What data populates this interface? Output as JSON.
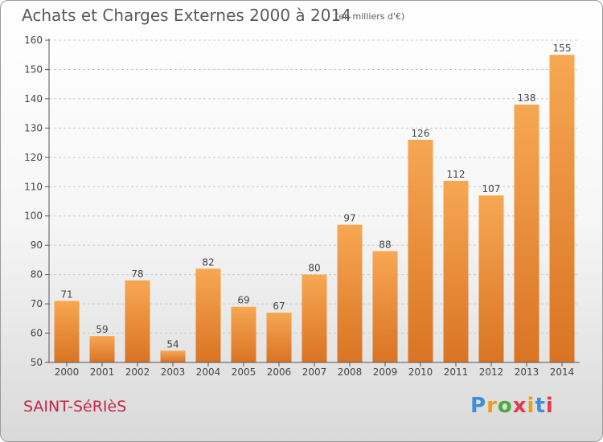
{
  "header": {
    "title": "Achats et Charges Externes 2000 à 2014",
    "unit": "(en milliers d'€)"
  },
  "footer": {
    "place": "SAINT-SéRIèS",
    "logo_text": "Proxiti",
    "logo_colors": [
      "#3f8fd8",
      "#f29a1f",
      "#4aa83f",
      "#e23a4e",
      "#f29a1f",
      "#3f8fd8",
      "#e23a4e"
    ]
  },
  "colors": {
    "bar_top": "#f7a752",
    "bar_bottom": "#d97424",
    "axis": "#555555",
    "grid": "#c9c9c9",
    "title": "#5a5a5a"
  },
  "chart_data": {
    "type": "bar",
    "title": "Achats et Charges Externes 2000 à 2014",
    "unit": "(en milliers d'€)",
    "categories": [
      "2000",
      "2001",
      "2002",
      "2003",
      "2004",
      "2005",
      "2006",
      "2007",
      "2008",
      "2009",
      "2010",
      "2011",
      "2012",
      "2013",
      "2014"
    ],
    "values": [
      71,
      59,
      78,
      54,
      82,
      69,
      67,
      80,
      97,
      88,
      126,
      112,
      107,
      138,
      155
    ],
    "ylim": [
      50,
      160
    ],
    "yticks": [
      50,
      60,
      70,
      80,
      90,
      100,
      110,
      120,
      130,
      140,
      150,
      160
    ],
    "grid": "horizontal-dashed",
    "data_labels": true
  }
}
